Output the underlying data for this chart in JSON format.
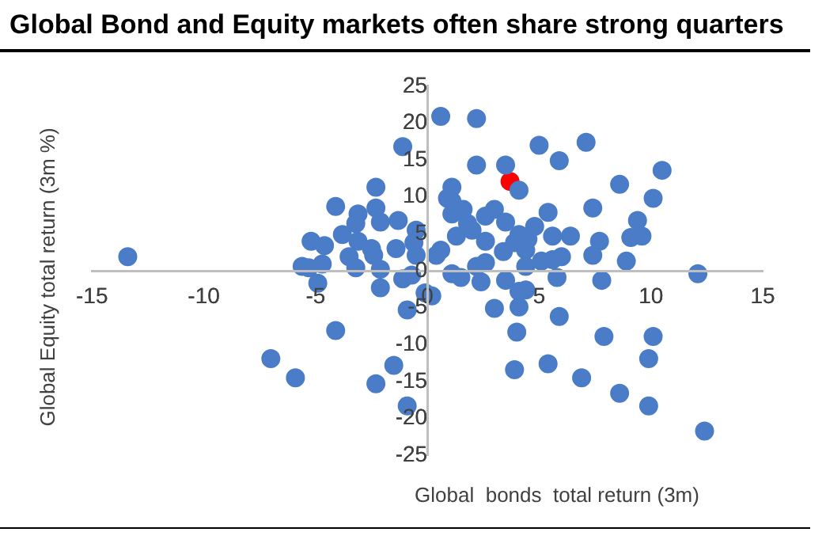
{
  "chart_data": {
    "type": "scatter",
    "title": "Global Bond and Equity markets often share strong quarters",
    "xlabel": "Global  bonds  total return (3m)",
    "ylabel": "Global  Equity  total return (3m %)",
    "xlim": [
      -15,
      15
    ],
    "ylim": [
      -25,
      25
    ],
    "xticks": [
      -15,
      -10,
      -5,
      0,
      5,
      10,
      15
    ],
    "yticks": [
      -25,
      -20,
      -15,
      -10,
      -5,
      0,
      5,
      10,
      15,
      20,
      25
    ],
    "grid": false,
    "legend": false,
    "marker": "circle",
    "series": [
      {
        "color": "#4a7cc7",
        "x": [
          -13.4,
          0.6,
          -1.1,
          -2.3,
          -4.1,
          -2.3,
          -3.1,
          -2.1,
          -1.3,
          -0.5,
          -3.2,
          -3.8,
          -3.1,
          -5.2,
          -4.6,
          -2.5,
          -1.4,
          -0.6,
          -3.5,
          -2.4,
          -0.5,
          0.4,
          0.6,
          1.1,
          1.1,
          1.1,
          1.3,
          -5.6,
          -5.3,
          -4.7,
          -3.2,
          -2.1,
          -1.1,
          -0.7,
          -4.9,
          1.1,
          -2.1,
          -0.1,
          0.2,
          -0.9,
          -4.1,
          -7.0,
          -5.9,
          -1.5,
          -2.3,
          -0.9,
          2.2,
          5.0,
          7.1,
          5.9,
          2.2,
          3.5,
          4.1,
          10.5,
          8.6,
          10.1,
          0.9,
          1.6,
          7.4,
          3.0,
          2.6,
          5.4,
          3.5,
          9.4,
          1.8,
          2.0,
          4.8,
          2.6,
          4.1,
          4.5,
          5.6,
          6.4,
          7.7,
          9.1,
          9.6,
          3.9,
          4.4,
          3.4,
          7.4,
          6.0,
          5.6,
          5.1,
          4.4,
          2.6,
          2.2,
          8.9,
          1.5,
          2.4,
          3.5,
          5.8,
          7.8,
          12.1,
          4.4,
          4.1,
          3.0,
          4.1,
          5.9,
          4.0,
          7.9,
          10.1,
          9.9,
          5.4,
          3.9,
          6.9,
          8.6,
          9.9,
          12.4
        ],
        "values": [
          1.9,
          20.9,
          16.8,
          11.3,
          8.7,
          8.5,
          7.7,
          6.6,
          6.8,
          5.5,
          6.4,
          4.9,
          4.0,
          4.0,
          3.4,
          3.0,
          3.0,
          3.8,
          1.9,
          2.1,
          2.1,
          2.1,
          2.8,
          9.4,
          11.3,
          7.7,
          4.7,
          0.6,
          0.4,
          0.9,
          0.4,
          0.2,
          -1.1,
          -0.6,
          -1.7,
          -0.4,
          -2.3,
          -3.0,
          -3.4,
          -5.3,
          -8.1,
          -11.9,
          -14.5,
          -12.8,
          -15.3,
          -18.3,
          20.6,
          17.0,
          17.4,
          14.9,
          14.3,
          14.3,
          10.9,
          13.6,
          11.7,
          9.8,
          9.8,
          8.3,
          8.5,
          8.3,
          7.4,
          7.9,
          6.6,
          6.8,
          6.4,
          5.5,
          6.0,
          4.0,
          4.9,
          4.3,
          4.7,
          4.7,
          4.0,
          4.5,
          4.7,
          3.8,
          2.8,
          2.6,
          2.1,
          1.9,
          1.5,
          1.3,
          0.6,
          1.1,
          0.6,
          1.3,
          -0.9,
          -1.5,
          -1.3,
          -0.9,
          -1.3,
          -0.4,
          -2.6,
          -2.8,
          -5.1,
          -4.9,
          -6.2,
          -8.3,
          -8.9,
          -8.9,
          -11.9,
          -12.6,
          -13.4,
          -14.5,
          -16.6,
          -18.3,
          -21.7
        ]
      },
      {
        "color": "#ff0000",
        "x": [
          3.7
        ],
        "values": [
          12.1
        ]
      }
    ]
  }
}
